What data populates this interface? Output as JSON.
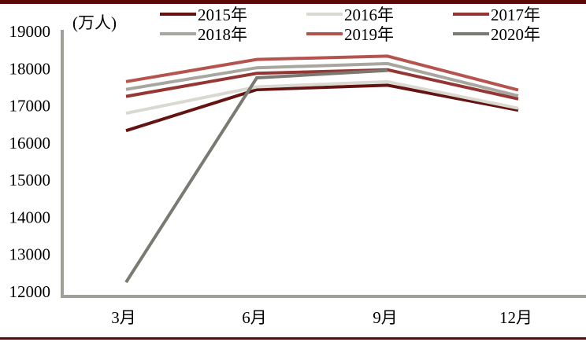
{
  "page": {
    "top_border_color": "#5c0808",
    "bottom_border_color": "#5c0808",
    "background": "#ffffff"
  },
  "chart_data": {
    "type": "line",
    "unit_label": "(万人)",
    "categories": [
      "3月",
      "6月",
      "9月",
      "12月"
    ],
    "series": [
      {
        "name": "2015年",
        "color": "#641311",
        "values": [
          16331,
          17436,
          17554,
          16884
        ]
      },
      {
        "name": "2016年",
        "color": "#d9d9d2",
        "values": [
          16799,
          17509,
          17649,
          16934
        ]
      },
      {
        "name": "2017年",
        "color": "#943634",
        "values": [
          17253,
          17873,
          17969,
          17185
        ]
      },
      {
        "name": "2018年",
        "color": "#a7a7a0",
        "values": [
          17441,
          18022,
          18135,
          17266
        ]
      },
      {
        "name": "2019年",
        "color": "#b5534f",
        "values": [
          17651,
          18248,
          18336,
          17425
        ]
      },
      {
        "name": "2020年",
        "color": "#7a7a73",
        "values": [
          12251,
          17752,
          17952,
          null
        ]
      }
    ],
    "ylim": [
      12000,
      19000
    ],
    "yticks": [
      19000,
      18000,
      17000,
      16000,
      15000,
      14000,
      13000,
      12000
    ],
    "ytick_step": 1000,
    "xlabel": "",
    "ylabel": "",
    "title": "",
    "legend_position": "top",
    "grid": false,
    "axis_color": "#a0a099",
    "line_width": 4
  }
}
